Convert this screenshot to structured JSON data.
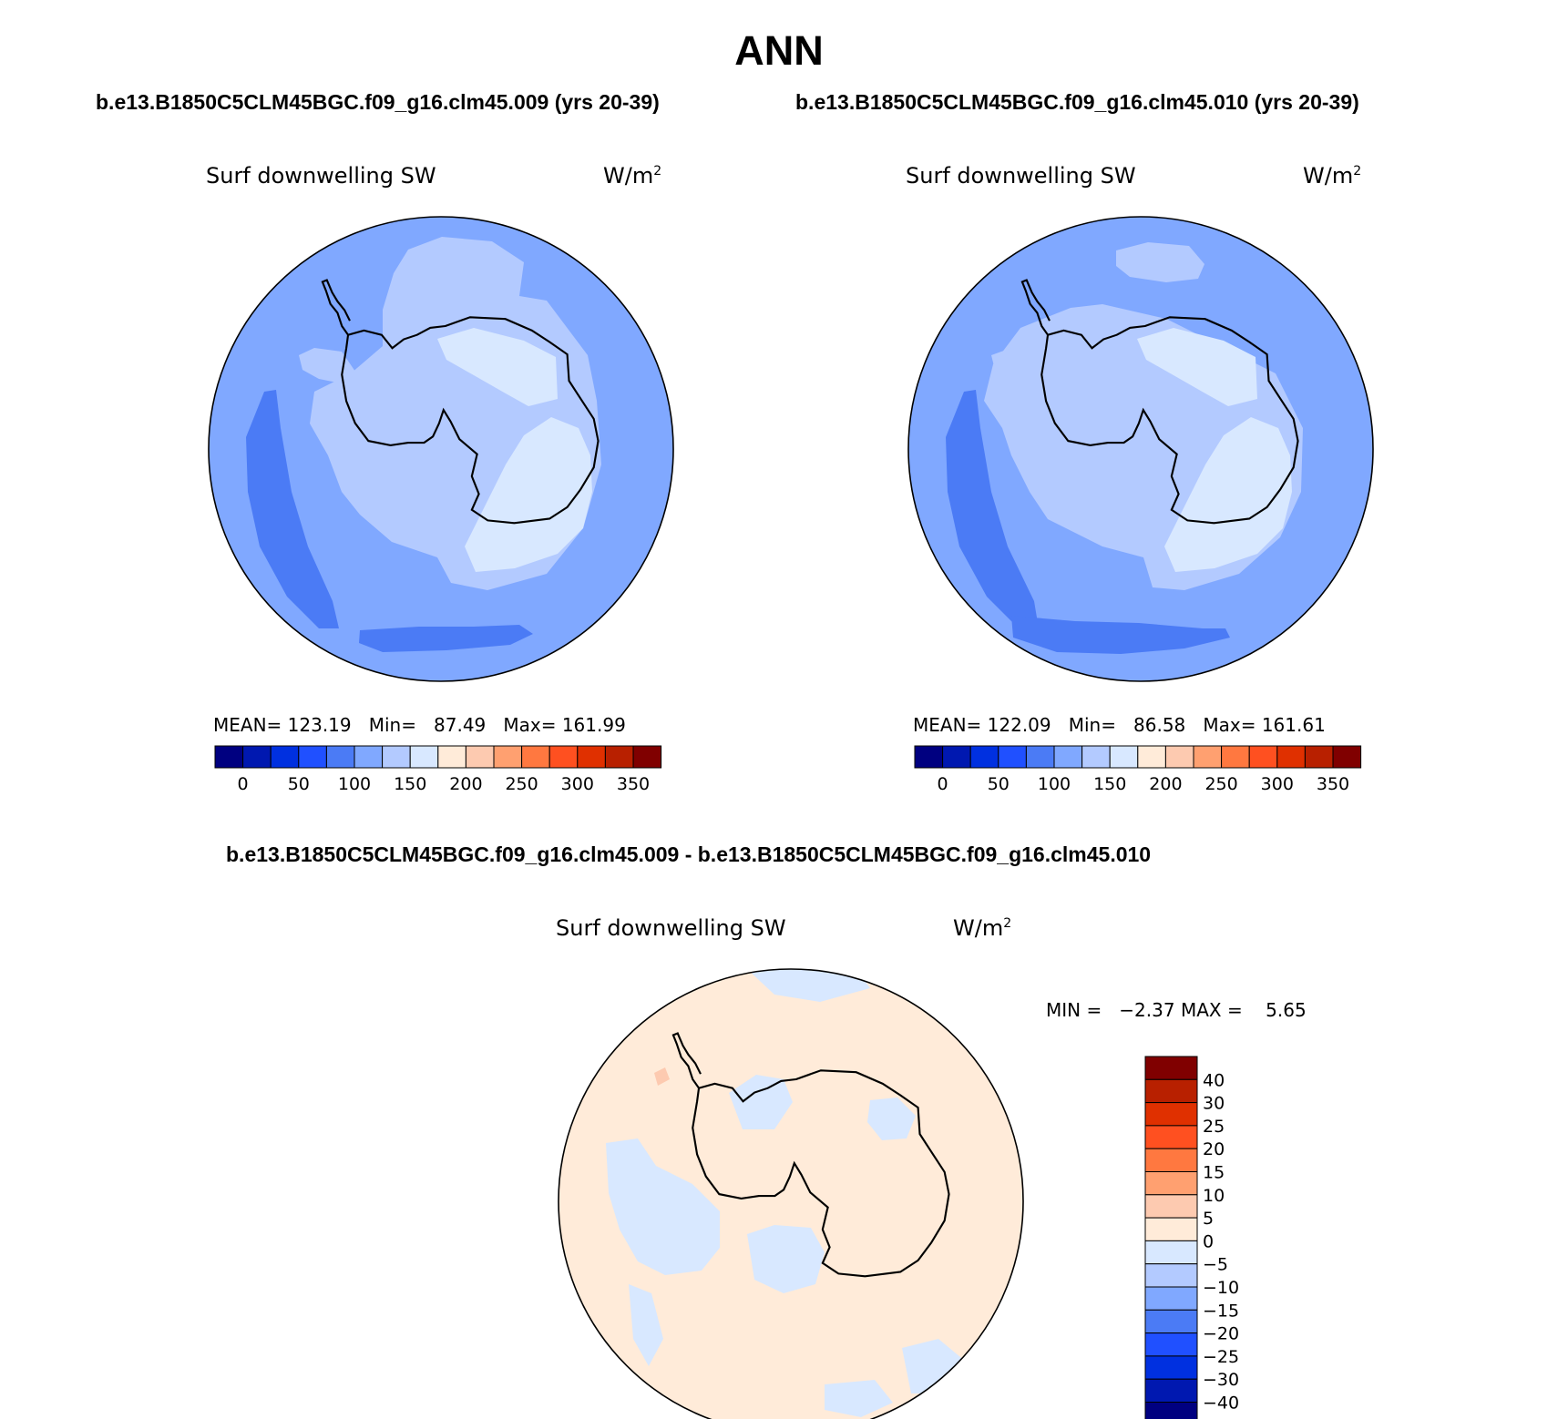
{
  "page": {
    "title": "ANN"
  },
  "panels": [
    {
      "case": "b.e13.B1850C5CLM45BGC.f09_g16.clm45.009 (yrs 20-39)",
      "variable": "Surf downwelling SW",
      "units_base": "W/m",
      "units_exp": "2",
      "stats": "MEAN= 123.19   Min=   87.49   Max= 161.99"
    },
    {
      "case": "b.e13.B1850C5CLM45BGC.f09_g16.clm45.010 (yrs 20-39)",
      "variable": "Surf downwelling SW",
      "units_base": "W/m",
      "units_exp": "2",
      "stats": "MEAN= 122.09   Min=   86.58   Max= 161.61"
    }
  ],
  "diff_panel": {
    "title": "b.e13.B1850C5CLM45BGC.f09_g16.clm45.009 - b.e13.B1850C5CLM45BGC.f09_g16.clm45.010",
    "variable": "Surf downwelling SW",
    "units_base": "W/m",
    "units_exp": "2",
    "minmax": "MIN =   −2.37 MAX =    5.65"
  },
  "colorbar_abs": {
    "colors": [
      "#000080",
      "#0018b0",
      "#0030e0",
      "#2050ff",
      "#4b7bf5",
      "#80a8ff",
      "#b3caff",
      "#d8e8ff",
      "#ffebd9",
      "#fdcab0",
      "#ffa070",
      "#ff7840",
      "#ff5020",
      "#e03000",
      "#b82000",
      "#800000"
    ],
    "ticks": [
      "0",
      "50",
      "100",
      "150",
      "200",
      "250",
      "300",
      "350"
    ]
  },
  "colorbar_diff": {
    "colors": [
      "#000080",
      "#0018b0",
      "#0030e0",
      "#2050ff",
      "#4b7bf5",
      "#80a8ff",
      "#b3caff",
      "#d8e8ff",
      "#ffebd9",
      "#fdcab0",
      "#ffa070",
      "#ff7840",
      "#ff5020",
      "#e03000",
      "#b82000",
      "#800000"
    ],
    "ticks": [
      "40",
      "30",
      "25",
      "20",
      "15",
      "10",
      "5",
      "0",
      "−5",
      "−10",
      "−15",
      "−20",
      "−25",
      "−30",
      "−40"
    ]
  },
  "map_colors": {
    "lev80": "#4b7bf5",
    "lev100": "#80a8ff",
    "lev120": "#b3caff",
    "lev140": "#d8e8ff",
    "diff_pos": "#ffebd9",
    "diff_neg": "#d8e8ff",
    "diff_pos5": "#fdcab0"
  }
}
